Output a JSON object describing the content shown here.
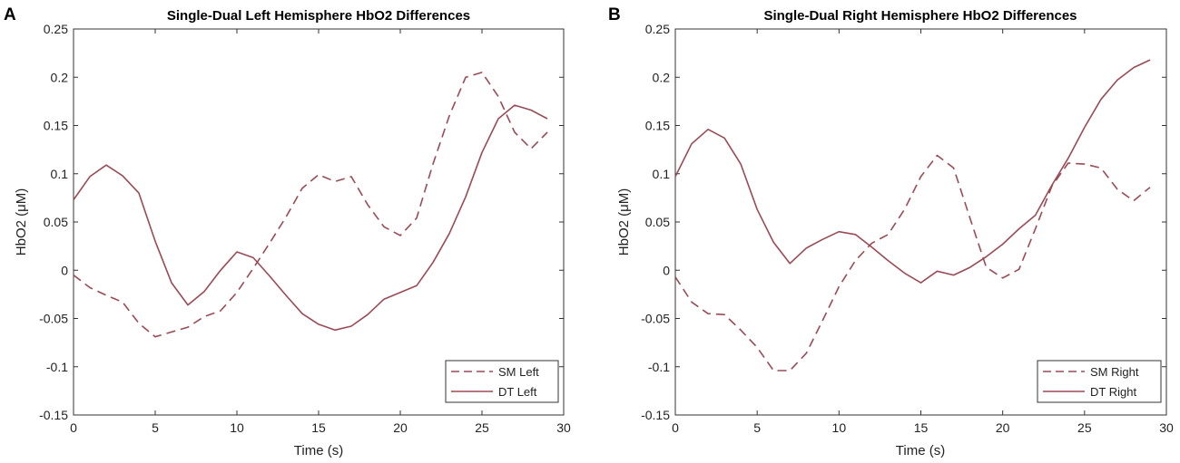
{
  "chart_data": [
    {
      "type": "line",
      "panel_label": "A",
      "title": "Single-Dual Left Hemisphere HbO2 Differences",
      "xlabel": "Time (s)",
      "ylabel": "HbO2 (μM)",
      "xlim": [
        0,
        30
      ],
      "ylim": [
        -0.15,
        0.25
      ],
      "xticks": [
        0,
        5,
        10,
        15,
        20,
        25,
        30
      ],
      "xtick_labels": [
        "0",
        "5",
        "10",
        "15",
        "20",
        "25",
        "30"
      ],
      "yticks": [
        -0.15,
        -0.1,
        -0.05,
        0,
        0.05,
        0.1,
        0.15,
        0.2,
        0.25
      ],
      "ytick_labels": [
        "-0.15",
        "-0.1",
        "-0.05",
        "0",
        "0.05",
        "0.1",
        "0.15",
        "0.2",
        "0.25"
      ],
      "grid": false,
      "legend_position": "bottom-right",
      "color": "#9b4a55",
      "x": [
        0,
        1,
        2,
        3,
        4,
        5,
        6,
        7,
        8,
        9,
        10,
        11,
        12,
        13,
        14,
        15,
        16,
        17,
        18,
        19,
        20,
        21,
        22,
        23,
        24,
        25,
        26,
        27,
        28,
        29
      ],
      "series": [
        {
          "name": "SM Left",
          "style": "dashed",
          "values": [
            -0.005,
            -0.018,
            -0.026,
            -0.033,
            -0.055,
            -0.069,
            -0.064,
            -0.059,
            -0.048,
            -0.042,
            -0.023,
            0.002,
            0.028,
            0.055,
            0.085,
            0.099,
            0.092,
            0.097,
            0.068,
            0.045,
            0.036,
            0.054,
            0.11,
            0.16,
            0.2,
            0.205,
            0.18,
            0.143,
            0.126,
            0.143
          ]
        },
        {
          "name": "DT Left",
          "style": "solid",
          "values": [
            0.073,
            0.097,
            0.109,
            0.098,
            0.08,
            0.03,
            -0.013,
            -0.036,
            -0.022,
            0.0,
            0.019,
            0.013,
            -0.006,
            -0.026,
            -0.045,
            -0.056,
            -0.062,
            -0.058,
            -0.046,
            -0.03,
            -0.023,
            -0.016,
            0.008,
            0.038,
            0.076,
            0.122,
            0.157,
            0.171,
            0.166,
            0.157
          ]
        }
      ]
    },
    {
      "type": "line",
      "panel_label": "B",
      "title": "Single-Dual Right Hemisphere HbO2 Differences",
      "xlabel": "Time (s)",
      "ylabel": "HbO2 (μM)",
      "xlim": [
        0,
        30
      ],
      "ylim": [
        -0.15,
        0.25
      ],
      "xticks": [
        0,
        5,
        10,
        15,
        20,
        25,
        30
      ],
      "xtick_labels": [
        "0",
        "5",
        "10",
        "15",
        "20",
        "25",
        "30"
      ],
      "yticks": [
        -0.15,
        -0.1,
        -0.05,
        0,
        0.05,
        0.1,
        0.15,
        0.2,
        0.25
      ],
      "ytick_labels": [
        "-0.15",
        "-0.1",
        "-0.05",
        "0",
        "0.05",
        "0.1",
        "0.15",
        "0.2",
        "0.25"
      ],
      "grid": false,
      "legend_position": "bottom-right",
      "color": "#9b4a55",
      "x": [
        0,
        1,
        2,
        3,
        4,
        5,
        6,
        7,
        8,
        9,
        10,
        11,
        12,
        13,
        14,
        15,
        16,
        17,
        18,
        19,
        20,
        21,
        22,
        23,
        24,
        25,
        26,
        27,
        28,
        29
      ],
      "series": [
        {
          "name": "SM Right",
          "style": "dashed",
          "values": [
            -0.007,
            -0.033,
            -0.045,
            -0.046,
            -0.062,
            -0.08,
            -0.104,
            -0.104,
            -0.086,
            -0.052,
            -0.017,
            0.01,
            0.028,
            0.037,
            0.063,
            0.097,
            0.119,
            0.106,
            0.054,
            0.003,
            -0.008,
            0.001,
            0.043,
            0.087,
            0.111,
            0.11,
            0.106,
            0.084,
            0.072,
            0.086
          ]
        },
        {
          "name": "DT Right",
          "style": "solid",
          "values": [
            0.097,
            0.131,
            0.146,
            0.137,
            0.11,
            0.063,
            0.029,
            0.007,
            0.023,
            0.032,
            0.04,
            0.037,
            0.024,
            0.01,
            -0.003,
            -0.013,
            -0.001,
            -0.005,
            0.003,
            0.014,
            0.027,
            0.043,
            0.057,
            0.088,
            0.116,
            0.148,
            0.177,
            0.197,
            0.21,
            0.218
          ]
        }
      ]
    }
  ]
}
